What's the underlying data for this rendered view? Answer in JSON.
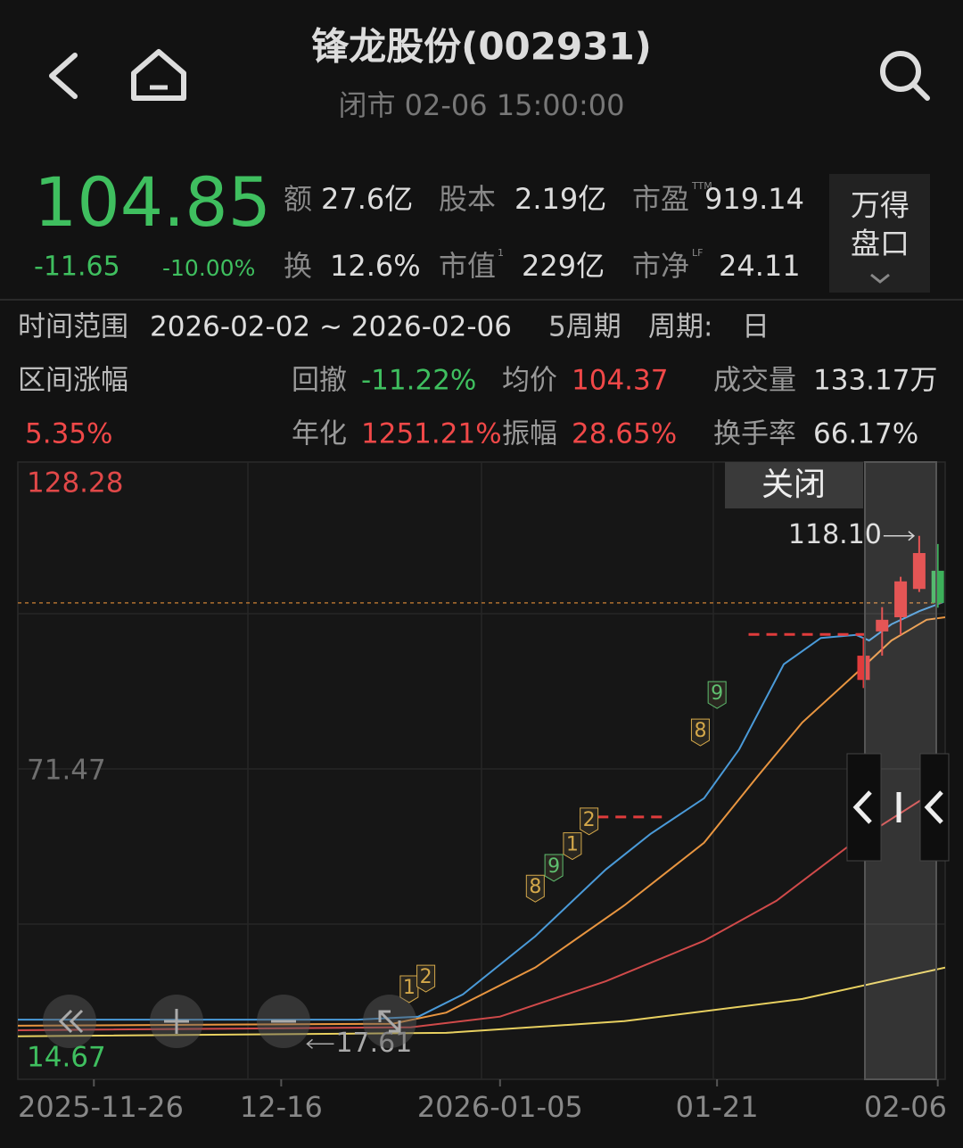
{
  "header": {
    "title": "锋龙股份(002931)",
    "status": "闭市 02-06 15:00:00"
  },
  "quote": {
    "price": "104.85",
    "change": "-11.65",
    "change_pct": "-10.00%",
    "stats": [
      {
        "label": "额",
        "value": "27.6亿"
      },
      {
        "label": "股本",
        "value": "2.19亿"
      },
      {
        "label": "市盈",
        "sup": "TTM",
        "value": "919.14"
      },
      {
        "label": "换",
        "value": "12.6%"
      },
      {
        "label": "市值",
        "sup": "1",
        "value": "229亿"
      },
      {
        "label": "市净",
        "sup": "LF",
        "value": "24.11"
      }
    ],
    "button": [
      "万得",
      "盘口"
    ]
  },
  "range": {
    "label": "时间范围",
    "dates": "2026-02-02 ~ 2026-02-06",
    "count": "5周期",
    "period_label": "周期:",
    "period": "日"
  },
  "metrics": {
    "range_change_label": "区间涨幅",
    "range_change": "5.35%",
    "items": [
      {
        "label": "回撤",
        "value": "-11.22%"
      },
      {
        "label": "均价",
        "value": "104.37"
      },
      {
        "label": "成交量",
        "value": "133.17万"
      },
      {
        "label": "年化",
        "value": "1251.21%"
      },
      {
        "label": "振幅",
        "value": "28.65%"
      },
      {
        "label": "换手率",
        "value": "66.17%"
      }
    ]
  },
  "close_button": "关闭",
  "chart_data": {
    "type": "candlestick",
    "xlim": [
      0,
      50
    ],
    "ylim": [
      10.6,
      132.7
    ],
    "y_labels": [
      128.28,
      71.47,
      14.67
    ],
    "y_label_colors": [
      "#e04848",
      "#6f6f6f",
      "#3fbf5f"
    ],
    "xticks": [
      {
        "value": 4.1,
        "label": "2025-11-26"
      },
      {
        "value": 14.2,
        "label": "12-16"
      },
      {
        "value": 26,
        "label": "2026-01-05"
      },
      {
        "value": 37.7,
        "label": "01-21"
      },
      {
        "value": 49.6,
        "label": "02-06"
      }
    ],
    "up_color": "#e03c3c",
    "down_color": "#3cb05a",
    "candles": [
      {
        "x": 45.6,
        "open": 89.6,
        "close": 94.4,
        "high": 98.0,
        "low": 88.0
      },
      {
        "x": 46.6,
        "open": 99.2,
        "close": 101.5,
        "high": 104.0,
        "low": 94.4
      },
      {
        "x": 47.6,
        "open": 102.0,
        "close": 109.1,
        "high": 110.0,
        "low": 98.5
      },
      {
        "x": 48.6,
        "open": 107.6,
        "close": 114.7,
        "high": 118.1,
        "low": 107.0
      },
      {
        "x": 49.6,
        "open": 111.2,
        "close": 104.85,
        "high": 116.5,
        "low": 103.9
      }
    ],
    "series": [
      {
        "color": "#4a9ad8",
        "x": [
          0,
          18.3,
          21.6,
          24.0,
          27.9,
          31.7,
          34.1,
          37.0,
          38.9,
          41.3,
          43.3,
          45.2,
          45.9,
          47.1,
          48.6,
          49.9
        ],
        "values": [
          22.4,
          22.4,
          23.0,
          27.4,
          38.9,
          52.1,
          59.1,
          66.2,
          75.9,
          92.7,
          97.9,
          98.5,
          97.4,
          100.6,
          103.2,
          105.0
        ]
      },
      {
        "color": "#e89540",
        "x": [
          0,
          20.2,
          23.1,
          27.9,
          32.7,
          37.0,
          39.9,
          42.3,
          45.2,
          47.1,
          49.0,
          50.0
        ],
        "values": [
          21.2,
          21.6,
          23.8,
          32.7,
          45.0,
          57.4,
          70.6,
          81.2,
          90.9,
          97.4,
          101.5,
          102.0
        ]
      },
      {
        "color": "#d04a4a",
        "x": [
          0,
          21.2,
          26.0,
          31.7,
          37.0,
          40.9,
          44.7,
          50.0
        ],
        "values": [
          20.3,
          20.9,
          23.0,
          30.0,
          38.0,
          45.9,
          56.5,
          68.9
        ]
      },
      {
        "color": "#e8d060",
        "x": [
          0,
          23.1,
          32.7,
          42.3,
          50.0
        ],
        "values": [
          19.1,
          19.8,
          22.1,
          26.5,
          32.7
        ]
      }
    ],
    "levels": [
      {
        "x0": 30.3,
        "x1": 35.1,
        "value": 62.5
      },
      {
        "x0": 39.4,
        "x1": 45.7,
        "value": 98.6
      }
    ],
    "markers": [
      {
        "x": 21.1,
        "y": 28.6,
        "value": 1,
        "color": "#d4a84a"
      },
      {
        "x": 22.0,
        "y": 30.7,
        "value": 2,
        "color": "#d4a84a"
      },
      {
        "x": 27.9,
        "y": 48.5,
        "value": 8,
        "color": "#d4a84a"
      },
      {
        "x": 28.9,
        "y": 52.6,
        "value": 9,
        "color": "#5fbf6f"
      },
      {
        "x": 29.9,
        "y": 56.9,
        "value": 1,
        "color": "#d4a84a"
      },
      {
        "x": 30.8,
        "y": 61.8,
        "value": 2,
        "color": "#d4a84a"
      },
      {
        "x": 36.8,
        "y": 79.4,
        "value": 8,
        "color": "#d4a84a"
      },
      {
        "x": 37.7,
        "y": 86.8,
        "value": 9,
        "color": "#5fbf6f"
      }
    ],
    "price_line": 104.85,
    "high_annotation": {
      "x": 48.6,
      "value": 118.1,
      "label": "118.10"
    },
    "low_annotation": {
      "x": 15.6,
      "value": 17.61
    }
  }
}
